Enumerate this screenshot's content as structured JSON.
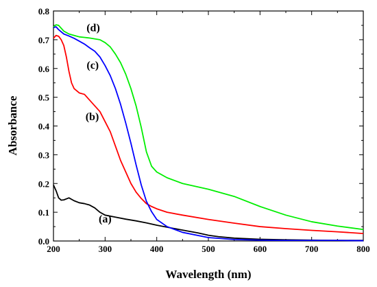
{
  "chart_data": {
    "type": "line",
    "title": "",
    "xlabel": "Wavelength (nm)",
    "ylabel": "Absorbance",
    "xlim": [
      200,
      800
    ],
    "ylim": [
      0.0,
      0.8
    ],
    "grid": false,
    "legend": "none",
    "xticks": [
      200,
      300,
      400,
      500,
      600,
      700,
      800
    ],
    "xtick_labels": [
      "200",
      "300",
      "400",
      "500",
      "600",
      "700",
      "800"
    ],
    "yticks": [
      0.0,
      0.1,
      0.2,
      0.3,
      0.4,
      0.5,
      0.6,
      0.7,
      0.8
    ],
    "ytick_labels": [
      "0.0",
      "0.1",
      "0.2",
      "0.3",
      "0.4",
      "0.5",
      "0.6",
      "0.7",
      "0.8"
    ],
    "series": [
      {
        "name": "(a)",
        "color": "#000000",
        "label_x": 300,
        "label_y": 0.065,
        "x": [
          200,
          205,
          210,
          215,
          220,
          230,
          240,
          250,
          260,
          270,
          280,
          290,
          300,
          320,
          340,
          360,
          380,
          400,
          420,
          450,
          480,
          500,
          520,
          550,
          600,
          650,
          700,
          750,
          800
        ],
        "y": [
          0.195,
          0.175,
          0.15,
          0.142,
          0.143,
          0.15,
          0.14,
          0.133,
          0.13,
          0.125,
          0.115,
          0.1,
          0.09,
          0.083,
          0.076,
          0.07,
          0.063,
          0.055,
          0.048,
          0.038,
          0.028,
          0.02,
          0.015,
          0.01,
          0.006,
          0.004,
          0.003,
          0.002,
          0.002
        ]
      },
      {
        "name": "(b)",
        "color": "#ff0000",
        "label_x": 275,
        "label_y": 0.42,
        "x": [
          200,
          205,
          210,
          215,
          220,
          225,
          230,
          235,
          240,
          250,
          260,
          270,
          280,
          290,
          300,
          310,
          320,
          330,
          340,
          350,
          360,
          370,
          380,
          390,
          400,
          420,
          450,
          500,
          550,
          600,
          650,
          700,
          750,
          800
        ],
        "y": [
          0.705,
          0.715,
          0.712,
          0.7,
          0.68,
          0.64,
          0.59,
          0.55,
          0.53,
          0.515,
          0.51,
          0.49,
          0.47,
          0.45,
          0.415,
          0.38,
          0.33,
          0.28,
          0.24,
          0.2,
          0.17,
          0.148,
          0.13,
          0.12,
          0.112,
          0.1,
          0.09,
          0.075,
          0.062,
          0.05,
          0.043,
          0.037,
          0.032,
          0.026
        ]
      },
      {
        "name": "(c)",
        "color": "#0000ff",
        "label_x": 276,
        "label_y": 0.6,
        "x": [
          200,
          205,
          210,
          220,
          230,
          240,
          250,
          260,
          270,
          280,
          290,
          300,
          310,
          320,
          330,
          340,
          350,
          360,
          370,
          380,
          390,
          400,
          420,
          450,
          500,
          550,
          600,
          650,
          700,
          750,
          800
        ],
        "y": [
          0.742,
          0.745,
          0.735,
          0.72,
          0.713,
          0.705,
          0.695,
          0.685,
          0.672,
          0.66,
          0.64,
          0.61,
          0.575,
          0.53,
          0.475,
          0.41,
          0.34,
          0.265,
          0.195,
          0.138,
          0.102,
          0.075,
          0.05,
          0.03,
          0.012,
          0.005,
          0.003,
          0.002,
          0.002,
          0.002,
          0.001
        ]
      },
      {
        "name": "(d)",
        "color": "#00ee00",
        "label_x": 277,
        "label_y": 0.73,
        "x": [
          200,
          205,
          210,
          215,
          220,
          230,
          240,
          250,
          260,
          270,
          280,
          290,
          300,
          310,
          320,
          330,
          340,
          350,
          360,
          370,
          380,
          390,
          400,
          420,
          450,
          500,
          550,
          600,
          650,
          700,
          750,
          800
        ],
        "y": [
          0.745,
          0.752,
          0.75,
          0.74,
          0.73,
          0.72,
          0.715,
          0.71,
          0.708,
          0.706,
          0.703,
          0.7,
          0.69,
          0.675,
          0.65,
          0.62,
          0.58,
          0.53,
          0.47,
          0.395,
          0.31,
          0.26,
          0.24,
          0.22,
          0.2,
          0.18,
          0.155,
          0.12,
          0.09,
          0.067,
          0.052,
          0.04
        ]
      }
    ]
  }
}
